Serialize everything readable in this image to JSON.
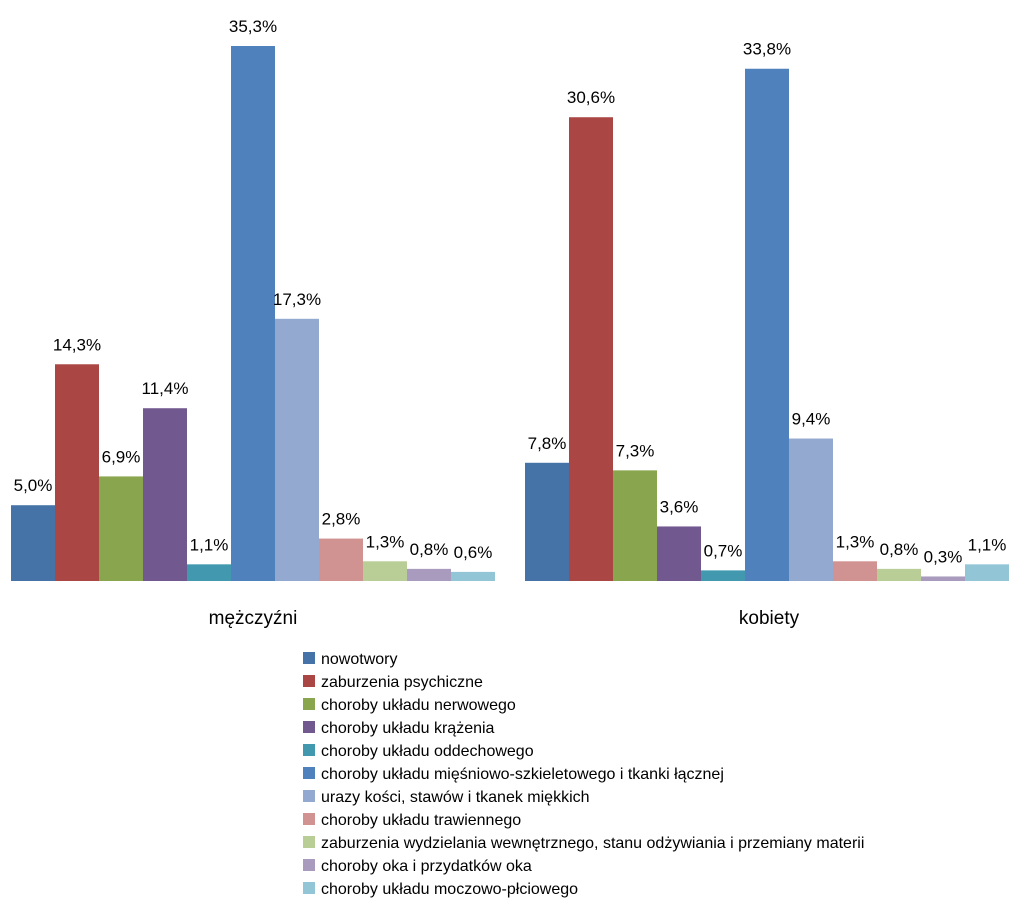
{
  "chart_data": {
    "type": "bar",
    "categories": [
      "mężczyźni",
      "kobiety"
    ],
    "ylim": [
      0,
      35.3
    ],
    "grid": false,
    "legend_position": "bottom",
    "series": [
      {
        "name": "nowotwory",
        "color": "#4572A7",
        "values": [
          5.0,
          7.8
        ],
        "labels": [
          "5,0%",
          "7,8%"
        ]
      },
      {
        "name": "zaburzenia psychiczne",
        "color": "#AA4643",
        "values": [
          14.3,
          30.6
        ],
        "labels": [
          "14,3%",
          "30,6%"
        ]
      },
      {
        "name": "choroby układu nerwowego",
        "color": "#89A54E",
        "values": [
          6.9,
          7.3
        ],
        "labels": [
          "6,9%",
          "7,3%"
        ]
      },
      {
        "name": "choroby układu krążenia",
        "color": "#71588F",
        "values": [
          11.4,
          3.6
        ],
        "labels": [
          "11,4%",
          "3,6%"
        ]
      },
      {
        "name": "choroby układu oddechowego",
        "color": "#4198AF",
        "values": [
          1.1,
          0.7
        ],
        "labels": [
          "1,1%",
          "0,7%"
        ]
      },
      {
        "name": "choroby układu mięśniowo-szkieletowego i tkanki łącznej",
        "color": "#4F81BD",
        "values": [
          35.3,
          33.8
        ],
        "labels": [
          "35,3%",
          "33,8%"
        ]
      },
      {
        "name": "urazy kości, stawów i tkanek miękkich",
        "color": "#93A9CF",
        "values": [
          17.3,
          9.4
        ],
        "labels": [
          "17,3%",
          "9,4%"
        ]
      },
      {
        "name": "choroby układu trawiennego",
        "color": "#D19392",
        "values": [
          2.8,
          1.3
        ],
        "labels": [
          "2,8%",
          "1,3%"
        ]
      },
      {
        "name": "zaburzenia wydzielania wewnętrznego, stanu odżywiania i przemiany materii",
        "color": "#B9CD96",
        "values": [
          1.3,
          0.8
        ],
        "labels": [
          "1,3%",
          "0,8%"
        ]
      },
      {
        "name": "choroby oka i przydatków oka",
        "color": "#A99BBD",
        "values": [
          0.8,
          0.3
        ],
        "labels": [
          "0,8%",
          "0,3%"
        ]
      },
      {
        "name": "choroby układu moczowo-płciowego",
        "color": "#92C5D6",
        "values": [
          0.6,
          1.1
        ],
        "labels": [
          "0,6%",
          "1,1%"
        ]
      }
    ]
  }
}
